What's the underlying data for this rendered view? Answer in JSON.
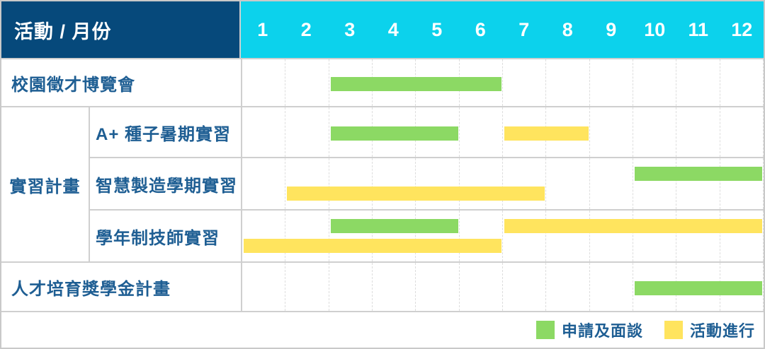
{
  "header": {
    "title": "活動 / 月份",
    "months": [
      "1",
      "2",
      "3",
      "4",
      "5",
      "6",
      "7",
      "8",
      "9",
      "10",
      "11",
      "12"
    ]
  },
  "colors": {
    "header_navy": "#06497b",
    "header_cyan": "#0cd2ec",
    "bar_green": "#8cd964",
    "bar_yellow": "#ffe45e",
    "label_text": "#1e5e93",
    "grid_line": "#dddddd",
    "separator": "#cfcfcf"
  },
  "groups": {
    "internship": "實習計畫"
  },
  "rows": [
    {
      "label": "校園徵才博覽會",
      "group": null,
      "bars": [
        {
          "type": "green",
          "start": 3,
          "end": 6,
          "track": "single"
        }
      ]
    },
    {
      "label": "A+ 種子暑期實習",
      "group": "實習計畫",
      "bars": [
        {
          "type": "green",
          "start": 3,
          "end": 5,
          "track": "single"
        },
        {
          "type": "yellow",
          "start": 7,
          "end": 8,
          "track": "single"
        }
      ]
    },
    {
      "label": "智慧製造學期實習",
      "group": "實習計畫",
      "bars": [
        {
          "type": "green",
          "start": 10,
          "end": 12,
          "track": "top"
        },
        {
          "type": "yellow",
          "start": 2,
          "end": 7,
          "track": "bottom"
        }
      ]
    },
    {
      "label": "學年制技師實習",
      "group": "實習計畫",
      "bars": [
        {
          "type": "green",
          "start": 3,
          "end": 5,
          "track": "top"
        },
        {
          "type": "yellow",
          "start": 7,
          "end": 12,
          "track": "top"
        },
        {
          "type": "yellow",
          "start": 1,
          "end": 6,
          "track": "bottom"
        }
      ]
    },
    {
      "label": "人才培育獎學金計畫",
      "group": null,
      "bars": [
        {
          "type": "green",
          "start": 10,
          "end": 12,
          "track": "single"
        }
      ]
    }
  ],
  "legend": [
    {
      "type": "green",
      "label": "申請及面談"
    },
    {
      "type": "yellow",
      "label": "活動進行"
    }
  ],
  "chart_data": {
    "type": "table",
    "title": "活動 / 月份",
    "x": [
      1,
      2,
      3,
      4,
      5,
      6,
      7,
      8,
      9,
      10,
      11,
      12
    ],
    "xlabel": "月份",
    "grid": true,
    "legend_position": "bottom-right",
    "series": [
      {
        "name": "校園徵才博覽會",
        "group": null,
        "bars": [
          {
            "phase": "申請及面談",
            "start_month": 3,
            "end_month": 6
          }
        ]
      },
      {
        "name": "A+ 種子暑期實習",
        "group": "實習計畫",
        "bars": [
          {
            "phase": "申請及面談",
            "start_month": 3,
            "end_month": 5
          },
          {
            "phase": "活動進行",
            "start_month": 7,
            "end_month": 8
          }
        ]
      },
      {
        "name": "智慧製造學期實習",
        "group": "實習計畫",
        "bars": [
          {
            "phase": "申請及面談",
            "start_month": 10,
            "end_month": 12
          },
          {
            "phase": "活動進行",
            "start_month": 2,
            "end_month": 7
          }
        ]
      },
      {
        "name": "學年制技師實習",
        "group": "實習計畫",
        "bars": [
          {
            "phase": "申請及面談",
            "start_month": 3,
            "end_month": 5
          },
          {
            "phase": "活動進行",
            "start_month": 7,
            "end_month": 12
          },
          {
            "phase": "活動進行",
            "start_month": 1,
            "end_month": 6
          }
        ]
      },
      {
        "name": "人才培育獎學金計畫",
        "group": null,
        "bars": [
          {
            "phase": "申請及面談",
            "start_month": 10,
            "end_month": 12
          }
        ]
      }
    ],
    "legend": [
      {
        "color": "#8cd964",
        "label": "申請及面談"
      },
      {
        "color": "#ffe45e",
        "label": "活動進行"
      }
    ]
  }
}
